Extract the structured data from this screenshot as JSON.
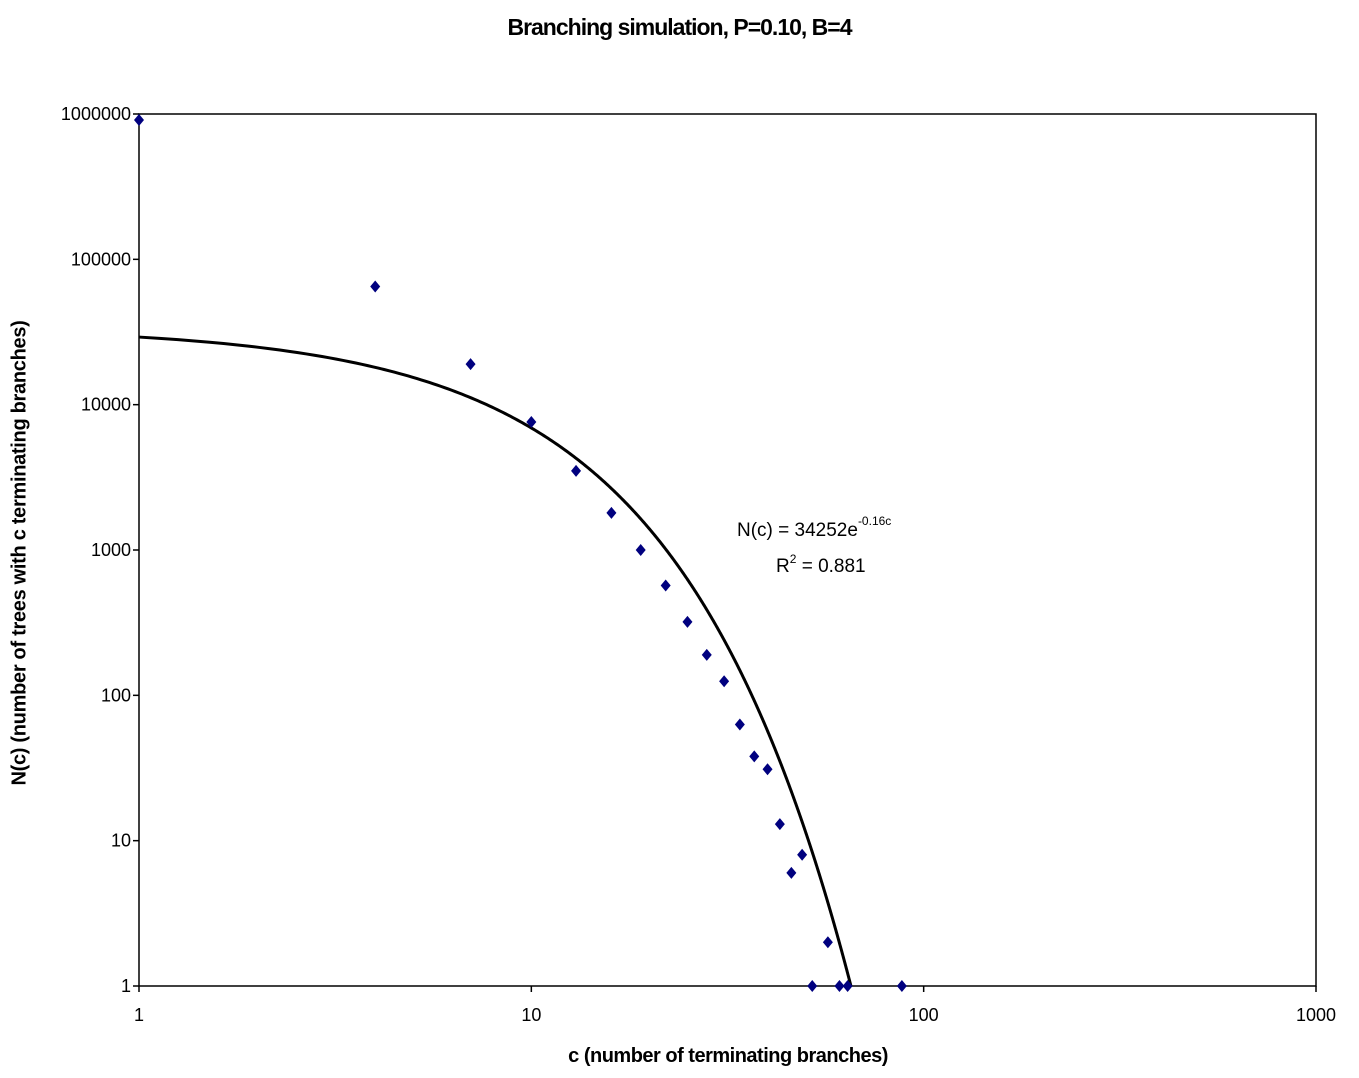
{
  "chart_data": {
    "type": "scatter",
    "title": "Branching simulation, P=0.10, B=4",
    "xlabel": "c (number of terminating branches)",
    "ylabel": "N(c) (number of trees with c terminating branches)",
    "x_scale": "log",
    "y_scale": "log",
    "xlim": [
      1,
      1000
    ],
    "ylim": [
      1,
      1000000
    ],
    "x_ticks": [
      "1",
      "10",
      "100",
      "1000"
    ],
    "y_ticks": [
      "1",
      "10",
      "100",
      "1000",
      "10000",
      "100000",
      "1000000"
    ],
    "grid": false,
    "legend": "none",
    "marker_color": "#00007F",
    "line_color": "#000000",
    "series": [
      {
        "points": [
          [
            1,
            910000
          ],
          [
            4,
            65000
          ],
          [
            7,
            19000
          ],
          [
            10,
            7600
          ],
          [
            13,
            3500
          ],
          [
            16,
            1800
          ],
          [
            19,
            1000
          ],
          [
            22,
            570
          ],
          [
            25,
            320
          ],
          [
            28,
            190
          ],
          [
            31,
            125
          ],
          [
            34,
            63
          ],
          [
            37,
            38
          ],
          [
            40,
            31
          ],
          [
            43,
            13
          ],
          [
            46,
            6
          ],
          [
            49,
            8
          ],
          [
            52,
            1
          ],
          [
            57,
            2
          ],
          [
            61,
            1
          ],
          [
            64,
            1
          ],
          [
            88,
            1
          ]
        ]
      }
    ],
    "trendline": {
      "type": "exponential",
      "a": 34252,
      "b": -0.16,
      "equation_base": "N(c) = 34252e",
      "equation_exponent": "-0.16c",
      "r2_prefix": "R",
      "r2_sup": "2",
      "r2_value": " = 0.881"
    }
  }
}
